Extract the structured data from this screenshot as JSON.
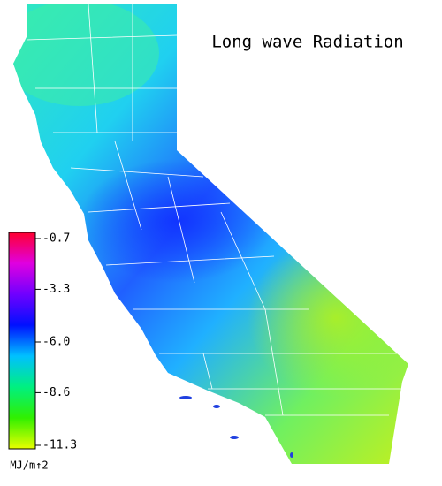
{
  "title": "Long wave Radiation",
  "colorbar": {
    "lim": [
      -11.3,
      -0.7
    ],
    "ticks": [
      -0.7,
      -3.3,
      {
        "value": -6,
        "label": "-6.0"
      },
      -8.6,
      -11.3
    ],
    "unit": "MJ/m↑2",
    "colors": [
      "#ff0030",
      "#e000e0",
      "#7000ff",
      "#0010ff",
      "#00c0ff",
      "#00f080",
      "#30f000",
      "#e8ff00"
    ]
  }
}
